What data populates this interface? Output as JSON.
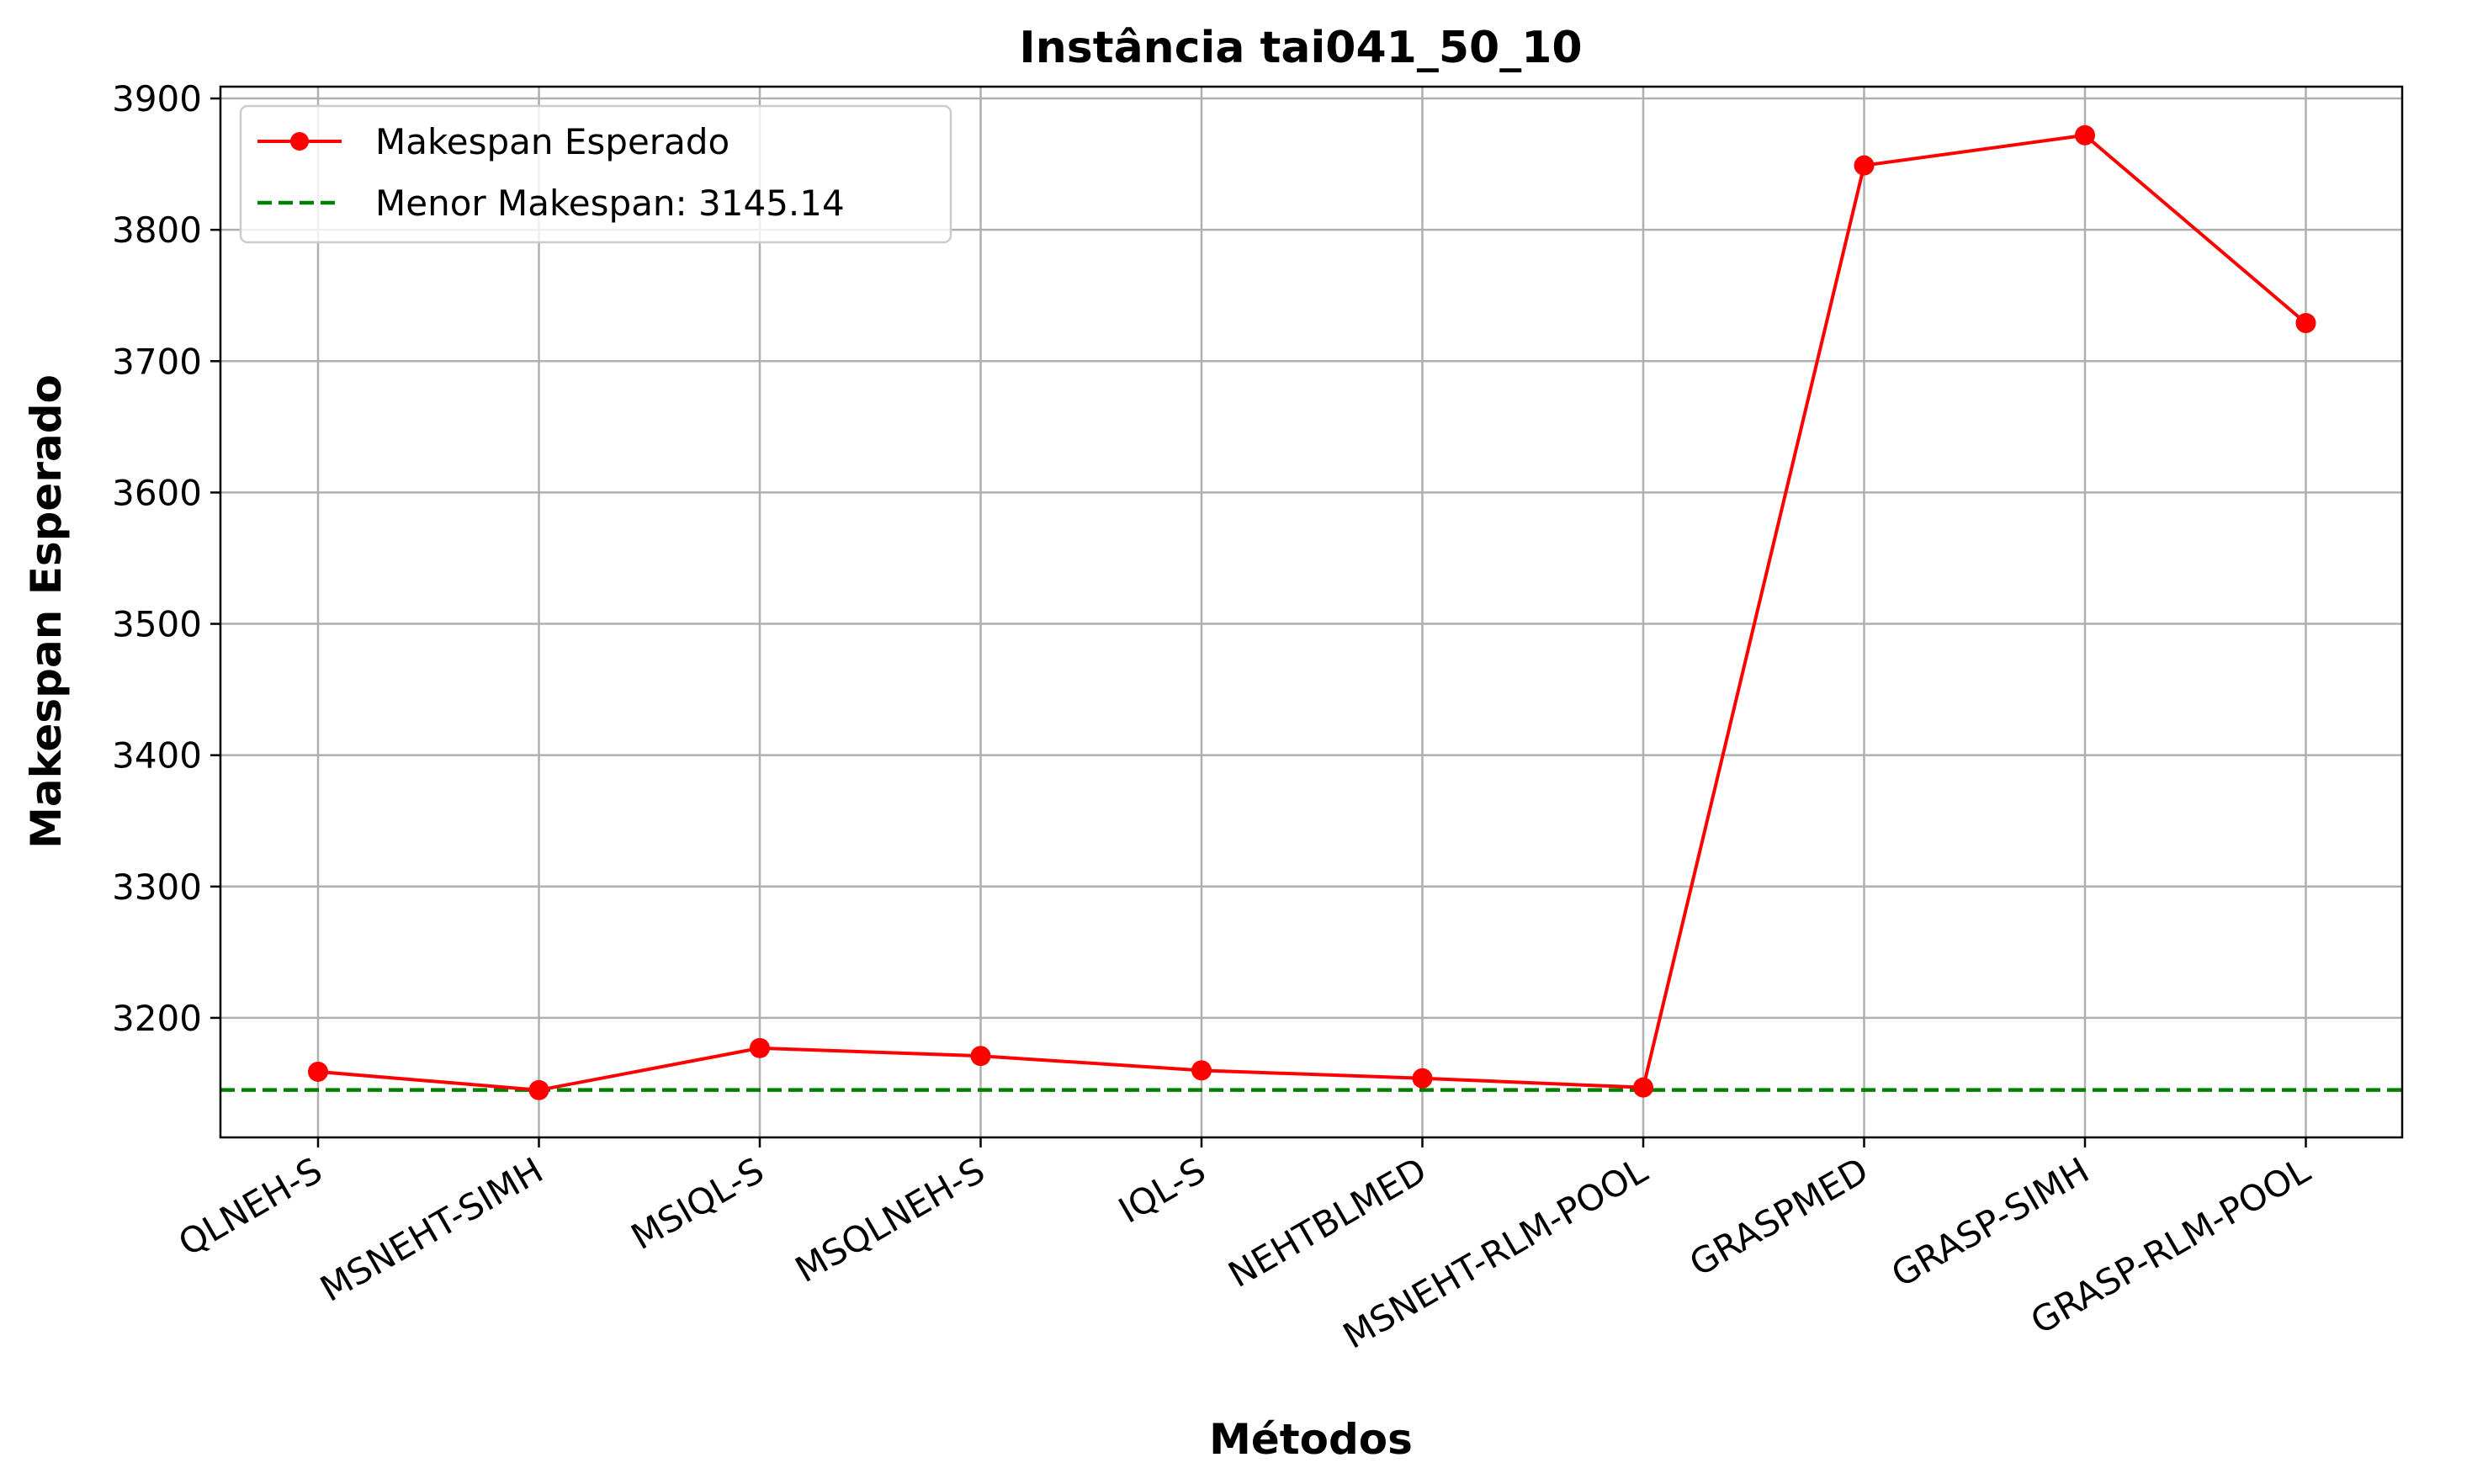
{
  "chart_data": {
    "type": "line",
    "title": "Instância tai041_50_10",
    "xlabel": "Métodos",
    "ylabel": "Makespan Esperado",
    "categories": [
      "QLNEH-S",
      "MSNEHT-SIMH",
      "MSIQL-S",
      "MSQLNEH-S",
      "IQL-S",
      "NEHTBLMED",
      "MSNEHT-RLM-POOL",
      "GRASPMED",
      "GRASP-SIMH",
      "GRASP-RLM-POOL"
    ],
    "series": [
      {
        "name": "Makespan Esperado",
        "color": "#ff0000",
        "marker": "circle",
        "values": [
          3159,
          3145,
          3177,
          3171,
          3160,
          3154,
          3147,
          3849,
          3872,
          3729
        ]
      }
    ],
    "reference_line": {
      "label": "Menor Makespan: 3145.14",
      "value": 3145.14,
      "color": "#008000",
      "style": "dashed"
    },
    "yticks": [
      3200,
      3300,
      3400,
      3500,
      3600,
      3700,
      3800,
      3900
    ],
    "ylim": [
      3109,
      3909
    ],
    "grid": true,
    "legend_position": "top-left",
    "xtick_rotation": 30
  }
}
